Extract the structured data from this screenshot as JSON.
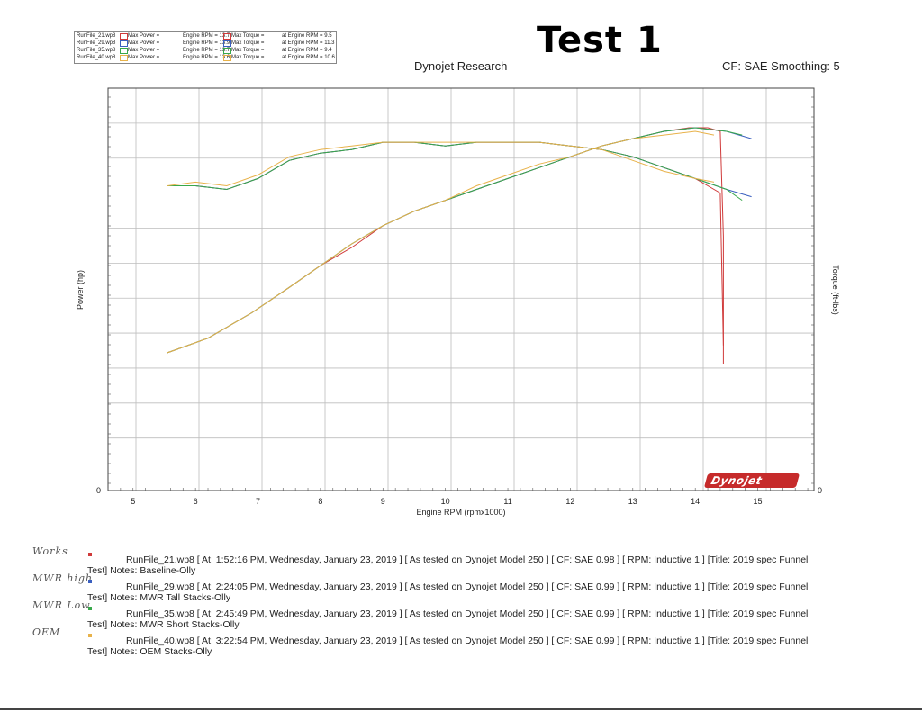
{
  "header": {
    "test_title": "Test 1",
    "center": "Dynojet Research",
    "right": "CF: SAE  Smoothing: 5"
  },
  "legend": [
    {
      "file": "RunFile_21.wp8",
      "badge": "1",
      "max_power": "Max Power =",
      "power_rpm": "Engine RPM = 13.7",
      "max_torque": "Max Torque =",
      "torque_rpm": "at Engine RPM = 9.5",
      "color": "#d03a3a"
    },
    {
      "file": "RunFile_29.wp8",
      "badge": "2",
      "max_power": "Max Power =",
      "power_rpm": "Engine RPM = 13.9",
      "max_torque": "Max Torque =",
      "torque_rpm": "at Engine RPM = 11.3",
      "color": "#3a5fbf"
    },
    {
      "file": "RunFile_35.wp8",
      "badge": "3",
      "max_power": "Max Power =",
      "power_rpm": "Engine RPM = 13.7",
      "max_torque": "Max Torque =",
      "torque_rpm": "at Engine RPM = 9.4",
      "color": "#38a84a"
    },
    {
      "file": "RunFile_40.wp8",
      "badge": "4",
      "max_power": "Max Power =",
      "power_rpm": "Engine RPM = 13.6",
      "max_torque": "Max Torque =",
      "torque_rpm": "at Engine RPM = 10.6",
      "color": "#e8b24a"
    }
  ],
  "chart_data": {
    "type": "line",
    "xlabel": "Engine RPM (rpmx1000)",
    "ylabel_left": "Power (hp)",
    "ylabel_right": "Torque (ft-lbs)",
    "xlim": [
      4.6,
      15.9
    ],
    "x_ticks": [
      5,
      6,
      7,
      8,
      9,
      10,
      11,
      12,
      13,
      14,
      15
    ],
    "ylim": [
      0,
      1
    ],
    "y_zero_label_left": "0",
    "y_zero_label_right": "0",
    "grid": true,
    "y_unlabeled_relative_scale": true,
    "series": [
      {
        "name": "RunFile_21.wp8",
        "color": "#d03a3a",
        "curves": {
          "power": {
            "x": [
              5.55,
              6.2,
              6.9,
              7.5,
              8.0,
              8.5,
              9.0,
              9.5,
              10.0,
              10.5,
              11.0,
              11.5,
              12.0,
              12.5,
              13.0,
              13.5,
              13.9,
              14.2,
              14.4,
              14.45,
              14.45
            ],
            "y": [
              0.38,
              0.42,
              0.49,
              0.56,
              0.62,
              0.67,
              0.73,
              0.77,
              0.8,
              0.83,
              0.86,
              0.89,
              0.92,
              0.95,
              0.97,
              0.99,
              1.0,
              1.0,
              0.99,
              0.7,
              0.35
            ]
          },
          "torque": {
            "x": [
              5.55,
              6.0,
              6.5,
              7.0,
              7.5,
              8.0,
              8.5,
              9.0,
              9.5,
              10.0,
              10.5,
              11.0,
              11.5,
              12.0,
              12.5,
              13.0,
              13.5,
              14.0,
              14.4,
              14.45
            ],
            "y": [
              0.84,
              0.84,
              0.83,
              0.86,
              0.91,
              0.93,
              0.94,
              0.96,
              0.96,
              0.95,
              0.96,
              0.96,
              0.96,
              0.95,
              0.94,
              0.92,
              0.89,
              0.86,
              0.82,
              0.4
            ]
          }
        }
      },
      {
        "name": "RunFile_29.wp8",
        "color": "#3a5fbf",
        "curves": {
          "power": {
            "x": [
              5.55,
              6.2,
              6.9,
              7.5,
              8.0,
              8.5,
              9.0,
              9.5,
              10.0,
              10.5,
              11.0,
              11.5,
              12.0,
              12.5,
              13.0,
              13.5,
              14.0,
              14.5,
              14.9
            ],
            "y": [
              0.38,
              0.42,
              0.49,
              0.56,
              0.62,
              0.68,
              0.73,
              0.77,
              0.8,
              0.83,
              0.86,
              0.89,
              0.92,
              0.95,
              0.97,
              0.99,
              1.0,
              0.99,
              0.97
            ]
          },
          "torque": {
            "x": [
              5.55,
              6.0,
              6.5,
              7.0,
              7.5,
              8.0,
              8.5,
              9.0,
              9.5,
              10.0,
              10.5,
              11.0,
              11.5,
              12.0,
              12.5,
              13.0,
              13.5,
              14.0,
              14.5,
              14.9
            ],
            "y": [
              0.84,
              0.84,
              0.83,
              0.86,
              0.91,
              0.93,
              0.94,
              0.96,
              0.96,
              0.95,
              0.96,
              0.96,
              0.96,
              0.95,
              0.94,
              0.92,
              0.89,
              0.86,
              0.83,
              0.81
            ]
          }
        }
      },
      {
        "name": "RunFile_35.wp8",
        "color": "#38a84a",
        "curves": {
          "power": {
            "x": [
              5.55,
              6.2,
              6.9,
              7.5,
              8.0,
              8.5,
              9.0,
              9.5,
              10.0,
              10.5,
              11.0,
              11.5,
              12.0,
              12.5,
              13.0,
              13.5,
              14.0,
              14.5,
              14.75
            ],
            "y": [
              0.38,
              0.42,
              0.49,
              0.56,
              0.62,
              0.68,
              0.73,
              0.77,
              0.8,
              0.83,
              0.86,
              0.89,
              0.92,
              0.95,
              0.97,
              0.99,
              1.0,
              0.99,
              0.98
            ]
          },
          "torque": {
            "x": [
              5.55,
              6.0,
              6.5,
              7.0,
              7.5,
              8.0,
              8.5,
              9.0,
              9.5,
              10.0,
              10.5,
              11.0,
              11.5,
              12.0,
              12.5,
              13.0,
              13.5,
              14.0,
              14.5,
              14.75
            ],
            "y": [
              0.84,
              0.84,
              0.83,
              0.86,
              0.91,
              0.93,
              0.94,
              0.96,
              0.96,
              0.95,
              0.96,
              0.96,
              0.96,
              0.95,
              0.94,
              0.92,
              0.89,
              0.86,
              0.83,
              0.8
            ]
          }
        }
      },
      {
        "name": "RunFile_40.wp8",
        "color": "#e8b24a",
        "curves": {
          "power": {
            "x": [
              5.55,
              6.2,
              6.9,
              7.5,
              8.0,
              8.5,
              9.0,
              9.5,
              10.0,
              10.5,
              11.0,
              11.5,
              12.0,
              12.5,
              13.0,
              13.5,
              14.0,
              14.3
            ],
            "y": [
              0.38,
              0.42,
              0.49,
              0.56,
              0.62,
              0.68,
              0.73,
              0.77,
              0.8,
              0.84,
              0.87,
              0.9,
              0.92,
              0.95,
              0.97,
              0.98,
              0.99,
              0.98
            ]
          },
          "torque": {
            "x": [
              5.55,
              6.0,
              6.5,
              7.0,
              7.5,
              8.0,
              8.5,
              9.0,
              9.5,
              10.0,
              10.5,
              11.0,
              11.5,
              12.0,
              12.5,
              13.0,
              13.5,
              14.0,
              14.3
            ],
            "y": [
              0.84,
              0.85,
              0.84,
              0.87,
              0.92,
              0.94,
              0.95,
              0.96,
              0.96,
              0.96,
              0.96,
              0.96,
              0.96,
              0.95,
              0.94,
              0.91,
              0.88,
              0.86,
              0.85
            ]
          }
        }
      }
    ]
  },
  "logo": "Dynojet",
  "notes": [
    {
      "hand": "Works",
      "color": "#d03a3a",
      "line1": "RunFile_21.wp8 [ At: 1:52:16 PM, Wednesday, January 23, 2019 ] [ As tested on Dynojet Model 250 ] [ CF: SAE 0.98 ] [ RPM: Inductive 1 ] [Title: 2019 spec Funnel",
      "line2": "Test]  Notes: Baseline-Olly"
    },
    {
      "hand": "MWR high",
      "color": "#3a5fbf",
      "line1": "RunFile_29.wp8 [ At: 2:24:05 PM, Wednesday, January 23, 2019 ] [ As tested on Dynojet Model 250 ] [ CF: SAE 0.99 ] [ RPM: Inductive 1 ] [Title: 2019 spec Funnel",
      "line2": "Test]  Notes: MWR Tall Stacks-Olly"
    },
    {
      "hand": "MWR Low",
      "color": "#38a84a",
      "line1": "RunFile_35.wp8 [ At: 2:45:49 PM, Wednesday, January 23, 2019 ] [ As tested on Dynojet Model 250 ] [ CF: SAE 0.99 ] [ RPM: Inductive 1 ] [Title: 2019 spec Funnel",
      "line2": "Test]  Notes: MWR Short Stacks-Olly"
    },
    {
      "hand": "OEM",
      "color": "#e8b24a",
      "line1": "RunFile_40.wp8 [ At: 3:22:54 PM, Wednesday, January 23, 2019 ] [ As tested on Dynojet Model 250 ] [ CF: SAE 0.99 ] [ RPM: Inductive 1 ] [Title: 2019 spec Funnel",
      "line2": "Test]  Notes: OEM Stacks-Olly"
    }
  ]
}
